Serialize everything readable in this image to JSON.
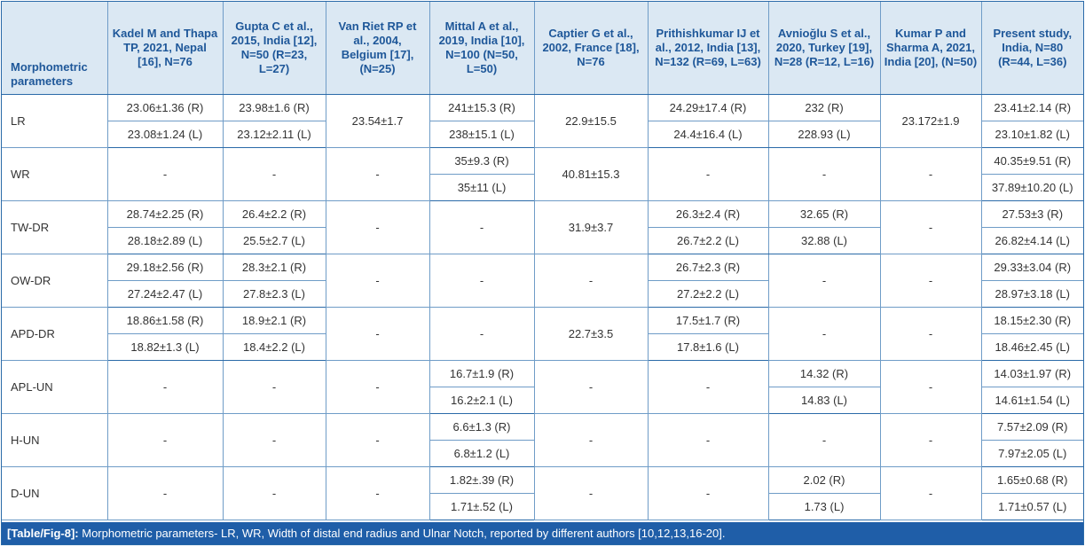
{
  "headers": [
    "Morphometric parameters",
    "Kadel M and Thapa TP, 2021, Nepal [16], N=76",
    "Gupta C et al., 2015, India [12], N=50 (R=23, L=27)",
    "Van Riet RP et al., 2004, Belgium [17], (N=25)",
    "Mittal A et al., 2019, India [10], N=100 (N=50, L=50)",
    "Captier G et al., 2002, France [18], N=76",
    "Prithishkumar IJ et al., 2012, India [13], N=132 (R=69, L=63)",
    "Avnioğlu S et al., 2020, Turkey [19], N=28 (R=12, L=16)",
    "Kumar P and Sharma A, 2021, India [20], (N=50)",
    "Present study, India, N=80 (R=44, L=36)"
  ],
  "rows": [
    {
      "param": "LR",
      "c1": [
        "23.06±1.36 (R)",
        "23.08±1.24 (L)"
      ],
      "c2": [
        "23.98±1.6 (R)",
        "23.12±2.11 (L)"
      ],
      "c3": "23.54±1.7",
      "c4": [
        "241±15.3 (R)",
        "238±15.1 (L)"
      ],
      "c5": "22.9±15.5",
      "c6": [
        "24.29±17.4 (R)",
        "24.4±16.4 (L)"
      ],
      "c7": [
        "232 (R)",
        "228.93 (L)"
      ],
      "c8": "23.172±1.9",
      "c9": [
        "23.41±2.14 (R)",
        "23.10±1.82 (L)"
      ]
    },
    {
      "param": "WR",
      "c1": "-",
      "c2": "-",
      "c3": "-",
      "c4": [
        "35±9.3 (R)",
        "35±11 (L)"
      ],
      "c5": "40.81±15.3",
      "c6": "-",
      "c7": "-",
      "c8": "-",
      "c9": [
        "40.35±9.51 (R)",
        "37.89±10.20 (L)"
      ]
    },
    {
      "param": "TW-DR",
      "c1": [
        "28.74±2.25 (R)",
        "28.18±2.89 (L)"
      ],
      "c2": [
        "26.4±2.2 (R)",
        "25.5±2.7 (L)"
      ],
      "c3": "-",
      "c4": "-",
      "c5": "31.9±3.7",
      "c6": [
        "26.3±2.4 (R)",
        "26.7±2.2 (L)"
      ],
      "c7": [
        "32.65 (R)",
        "32.88 (L)"
      ],
      "c8": "-",
      "c9": [
        "27.53±3 (R)",
        "26.82±4.14 (L)"
      ]
    },
    {
      "param": "OW-DR",
      "c1": [
        "29.18±2.56 (R)",
        "27.24±2.47 (L)"
      ],
      "c2": [
        "28.3±2.1 (R)",
        "27.8±2.3 (L)"
      ],
      "c3": "-",
      "c4": "-",
      "c5": "-",
      "c6": [
        "26.7±2.3 (R)",
        "27.2±2.2 (L)"
      ],
      "c7": "-",
      "c8": "-",
      "c9": [
        "29.33±3.04 (R)",
        "28.97±3.18 (L)"
      ]
    },
    {
      "param": "APD-DR",
      "c1": [
        "18.86±1.58 (R)",
        "18.82±1.3 (L)"
      ],
      "c2": [
        "18.9±2.1 (R)",
        "18.4±2.2 (L)"
      ],
      "c3": "-",
      "c4": "-",
      "c5": "22.7±3.5",
      "c6": [
        "17.5±1.7 (R)",
        "17.8±1.6 (L)"
      ],
      "c7": "-",
      "c8": "-",
      "c9": [
        "18.15±2.30 (R)",
        "18.46±2.45 (L)"
      ]
    },
    {
      "param": "APL-UN",
      "c1": "-",
      "c2": "-",
      "c3": "-",
      "c4": [
        "16.7±1.9 (R)",
        "16.2±2.1 (L)"
      ],
      "c5": "-",
      "c6": "-",
      "c7": [
        "14.32 (R)",
        "14.83 (L)"
      ],
      "c8": "-",
      "c9": [
        "14.03±1.97 (R)",
        "14.61±1.54 (L)"
      ]
    },
    {
      "param": "H-UN",
      "c1": "-",
      "c2": "-",
      "c3": "-",
      "c4": [
        "6.6±1.3 (R)",
        "6.8±1.2 (L)"
      ],
      "c5": "-",
      "c6": "-",
      "c7": "-",
      "c8": "-",
      "c9": [
        "7.57±2.09 (R)",
        "7.97±2.05 (L)"
      ]
    },
    {
      "param": "D-UN",
      "c1": "-",
      "c2": "-",
      "c3": "-",
      "c4": [
        "1.82±.39 (R)",
        "1.71±.52 (L)"
      ],
      "c5": "-",
      "c6": "-",
      "c7": [
        "2.02 (R)",
        "1.73 (L)"
      ],
      "c8": "-",
      "c9": [
        "1.65±0.68 (R)",
        "1.71±0.57 (L)"
      ]
    }
  ],
  "caption": {
    "label": "[Table/Fig-8]:",
    "text": " Morphometric parameters- LR, WR, Width of distal end radius and Ulnar Notch, reported by different authors [10,12,13,16-20]."
  }
}
